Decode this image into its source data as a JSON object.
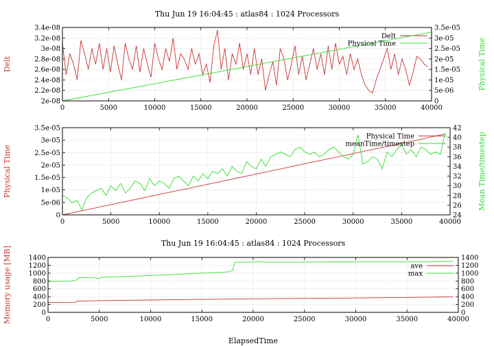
{
  "colors": {
    "red": "#c83232",
    "green": "#2edc2e",
    "text": "#000000"
  },
  "chart_data": [
    {
      "type": "line",
      "title": "Thu Jun 19 16:04:45 : atlas84 : 1024 Processors",
      "xlabel": "",
      "ylabel": "Delt",
      "y2label": "Physical Time",
      "xlim": [
        0,
        40000
      ],
      "ylim": [
        2e-08,
        3.4e-08
      ],
      "y2lim": [
        0,
        3.5e-05
      ],
      "xticks": [
        "0",
        "5000",
        "10000",
        "15000",
        "20000",
        "25000",
        "30000",
        "35000",
        "40000"
      ],
      "yticks": [
        "2e-08",
        "2.2e-08",
        "2.4e-08",
        "2.6e-08",
        "2.8e-08",
        "3e-08",
        "3.2e-08",
        "3.4e-08"
      ],
      "y2ticks": [
        "0",
        "5e-06",
        "1e-05",
        "1.5e-05",
        "2e-05",
        "2.5e-05",
        "3e-05",
        "3.5e-05"
      ],
      "grid": true,
      "legend": "top-right",
      "series": [
        {
          "name": "Delt",
          "axis": "y",
          "color": "#c83232",
          "x": [
            0,
            400,
            800,
            1200,
            1600,
            2000,
            2400,
            2800,
            3200,
            3600,
            4000,
            4400,
            4800,
            5200,
            5600,
            6000,
            6400,
            6800,
            7200,
            7600,
            8000,
            8400,
            8800,
            9200,
            9600,
            10000,
            10400,
            10800,
            11200,
            11600,
            12000,
            12400,
            12800,
            13200,
            13600,
            14000,
            14400,
            14800,
            15200,
            15600,
            16000,
            16400,
            16800,
            17200,
            17600,
            18000,
            18400,
            18800,
            19200,
            19600,
            20000,
            20400,
            20800,
            21200,
            21600,
            22000,
            22400,
            22800,
            23200,
            23600,
            24000,
            24400,
            24800,
            25200,
            25600,
            26000,
            26400,
            26800,
            27200,
            27600,
            28000,
            28400,
            28800,
            29200,
            29600,
            30000,
            30400,
            30800,
            31200,
            31600,
            32000,
            32400,
            32800,
            33200,
            33600,
            34000,
            34400,
            34800,
            35200,
            35600,
            36000,
            36400,
            36800,
            37200,
            37600,
            38000,
            38400,
            38800,
            39200,
            39600
          ],
          "y": [
            3.1e-08,
            2.5e-08,
            2.9e-08,
            2.7e-08,
            2.4e-08,
            3.15e-08,
            2.9e-08,
            2.6e-08,
            3e-08,
            2.7e-08,
            3.1e-08,
            2.6e-08,
            3e-08,
            2.55e-08,
            3.05e-08,
            2.7e-08,
            2.4e-08,
            3.1e-08,
            2.8e-08,
            2.6e-08,
            3.05e-08,
            2.55e-08,
            3e-08,
            2.7e-08,
            2.45e-08,
            3.1e-08,
            2.8e-08,
            2.6e-08,
            3e-08,
            2.75e-08,
            3.2e-08,
            2.6e-08,
            2.9e-08,
            2.8e-08,
            2.6e-08,
            3e-08,
            2.7e-08,
            2.9e-08,
            2.5e-08,
            2.7e-08,
            2.35e-08,
            3.05e-08,
            3.35e-08,
            2.6e-08,
            3e-08,
            2.4e-08,
            2.9e-08,
            2.7e-08,
            3.1e-08,
            2.6e-08,
            2.9e-08,
            2.5e-08,
            3e-08,
            2.5e-08,
            2.8e-08,
            2.2e-08,
            2.5e-08,
            2.75e-08,
            2.3e-08,
            3e-08,
            2.8e-08,
            2.4e-08,
            2.7e-08,
            3.05e-08,
            2.5e-08,
            2.85e-08,
            2.4e-08,
            2.7e-08,
            3e-08,
            2.6e-08,
            2.9e-08,
            2.5e-08,
            3.05e-08,
            2.6e-08,
            3.1e-08,
            2.7e-08,
            2.85e-08,
            2.5e-08,
            2.9e-08,
            2.6e-08,
            2.8e-08,
            2.5e-08,
            2.3e-08,
            2.2e-08,
            2.15e-08,
            2.4e-08,
            2.6e-08,
            2.8e-08,
            3e-08,
            2.6e-08,
            2.9e-08,
            2.5e-08,
            2.8e-08,
            2.6e-08,
            2.3e-08,
            2.55e-08,
            2.85e-08,
            2.8e-08,
            2.7e-08,
            2.65e-08
          ]
        },
        {
          "name": "Physical Time",
          "axis": "y2",
          "color": "#2edc2e",
          "x": [
            0,
            5000,
            10000,
            15000,
            20000,
            25000,
            30000,
            35000,
            40000
          ],
          "y": [
            0,
            4.1e-06,
            8.2e-06,
            1.23e-05,
            1.64e-05,
            2.05e-05,
            2.46e-05,
            2.87e-05,
            3.28e-05
          ]
        }
      ]
    },
    {
      "type": "line",
      "title": "",
      "xlabel": "",
      "ylabel": "Physical Time",
      "y2label": "Mean Time/timestep",
      "xlim": [
        0,
        40000
      ],
      "ylim": [
        0,
        3.5e-05
      ],
      "y2lim": [
        24,
        42
      ],
      "xticks": [
        "0",
        "5000",
        "10000",
        "15000",
        "20000",
        "25000",
        "30000",
        "35000",
        "40000"
      ],
      "yticks": [
        "0",
        "5e-06",
        "1e-05",
        "1.5e-05",
        "2e-05",
        "2.5e-05",
        "3e-05",
        "3.5e-05"
      ],
      "y2ticks": [
        "24",
        "26",
        "28",
        "30",
        "32",
        "34",
        "36",
        "38",
        "40",
        "42"
      ],
      "grid": true,
      "legend": "top-right",
      "series": [
        {
          "name": "Physical Time",
          "axis": "y",
          "color": "#c83232",
          "x": [
            0,
            5000,
            10000,
            15000,
            20000,
            25000,
            30000,
            35000,
            39500
          ],
          "y": [
            0,
            4.1e-06,
            8.2e-06,
            1.23e-05,
            1.64e-05,
            2.05e-05,
            2.46e-05,
            2.87e-05,
            3.25e-05
          ]
        },
        {
          "name": "meanTime/timestep",
          "axis": "y2",
          "color": "#2edc2e",
          "x": [
            0,
            500,
            1000,
            1500,
            2000,
            2500,
            3000,
            3500,
            4000,
            4500,
            5000,
            5500,
            6000,
            6500,
            7000,
            7500,
            8000,
            8500,
            9000,
            9500,
            10000,
            10500,
            11000,
            11500,
            12000,
            12500,
            13000,
            13500,
            14000,
            14500,
            15000,
            15500,
            16000,
            16500,
            17000,
            17500,
            18000,
            18500,
            19000,
            19500,
            20000,
            20500,
            21000,
            21500,
            22000,
            22500,
            23000,
            23500,
            24000,
            24500,
            25000,
            25500,
            26000,
            26500,
            27000,
            27500,
            28000,
            28500,
            29000,
            29500,
            30000,
            30500,
            31000,
            31500,
            32000,
            32500,
            33000,
            33500,
            34000,
            34500,
            35000,
            35500,
            36000,
            36500,
            37000,
            37500,
            38000,
            38500,
            39000,
            39500
          ],
          "y": [
            28,
            27.5,
            26.5,
            27,
            25,
            27.5,
            28.5,
            29,
            29.5,
            28,
            30,
            29,
            30.5,
            28.5,
            29.5,
            31,
            30.5,
            29,
            31.5,
            30,
            31,
            30.5,
            29.5,
            31.5,
            32,
            31,
            30,
            32,
            31,
            32.5,
            31.5,
            33,
            32.5,
            33.5,
            32,
            34,
            33,
            32.5,
            35,
            34,
            33.5,
            35.5,
            34,
            36,
            36.5,
            37,
            36.5,
            36,
            37.5,
            38,
            37,
            36.5,
            37,
            36,
            36.5,
            37.5,
            38,
            37,
            36,
            35.5,
            36.5,
            40.5,
            34.5,
            35,
            36,
            35.5,
            33.5,
            37,
            36,
            37.5,
            38.5,
            36.5,
            37.5,
            36,
            38,
            37.5,
            36.5,
            37,
            36.5,
            41
          ]
        }
      ]
    },
    {
      "type": "line",
      "title": "Thu Jun 19 16:04:45 : atlas84 : 1024 Processors",
      "xlabel": "ElapsedTime",
      "ylabel": "Memory usage [MB]",
      "y2label": "",
      "xlim": [
        0,
        40000
      ],
      "ylim": [
        0,
        1400
      ],
      "y2lim": [
        0,
        1400
      ],
      "xticks": [
        "0",
        "5000",
        "10000",
        "15000",
        "20000",
        "25000",
        "30000",
        "35000",
        "40000"
      ],
      "yticks": [
        "0",
        "200",
        "400",
        "600",
        "800",
        "1000",
        "1200",
        "1400"
      ],
      "y2ticks": [
        "0",
        "200",
        "400",
        "600",
        "800",
        "1000",
        "1200",
        "1400"
      ],
      "grid": true,
      "legend": "top-right",
      "series": [
        {
          "name": "ave",
          "axis": "y",
          "color": "#c83232",
          "x": [
            0,
            2700,
            2800,
            5000,
            10000,
            15000,
            20000,
            25000,
            30000,
            35000,
            39500
          ],
          "y": [
            250,
            255,
            285,
            300,
            315,
            330,
            345,
            355,
            365,
            380,
            395
          ]
        },
        {
          "name": "max",
          "axis": "y2",
          "color": "#2edc2e",
          "x": [
            0,
            2000,
            2700,
            3000,
            4500,
            5000,
            5200,
            6000,
            8000,
            10000,
            12000,
            14000,
            16000,
            17500,
            18000,
            18200,
            20000,
            20500,
            21000,
            25000,
            30000,
            35000,
            38000,
            39500
          ],
          "y": [
            790,
            800,
            810,
            880,
            880,
            860,
            900,
            900,
            920,
            940,
            960,
            990,
            1010,
            1030,
            1070,
            1280,
            1280,
            1300,
            1280,
            1280,
            1290,
            1290,
            1295,
            1300
          ]
        }
      ]
    }
  ]
}
